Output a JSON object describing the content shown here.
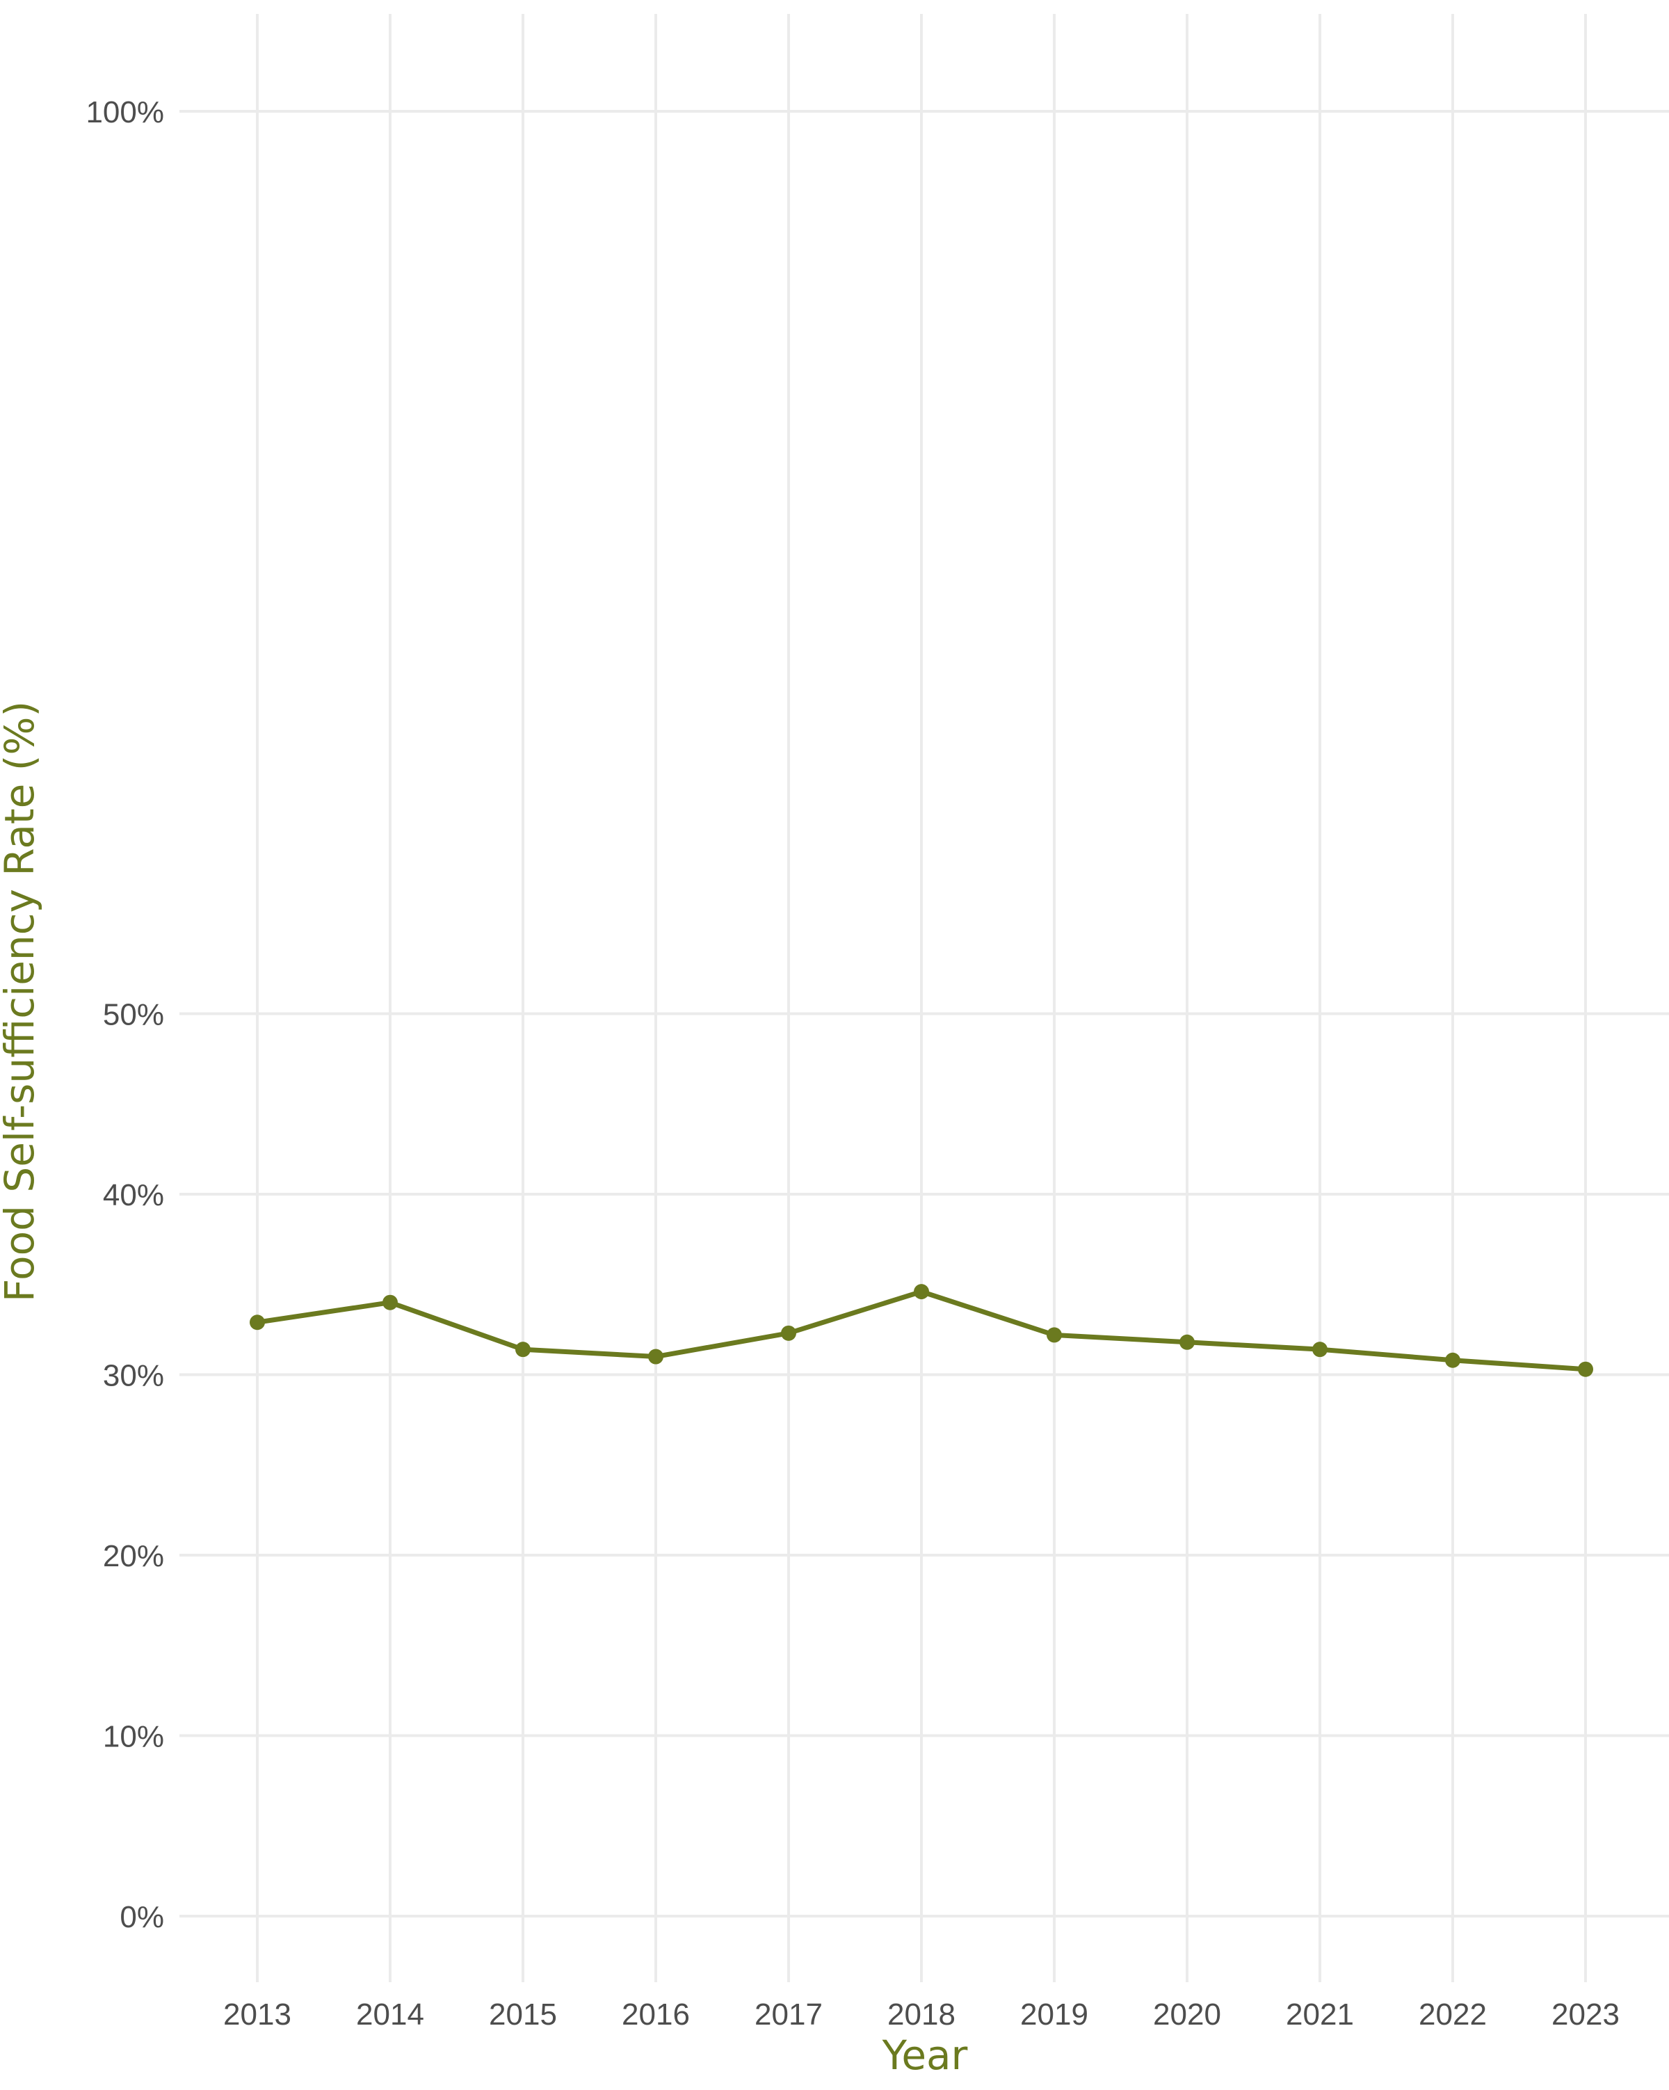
{
  "chart_data": {
    "type": "line",
    "title": "",
    "xlabel": "Year",
    "ylabel": "Food Self-sufficiency Rate (%)",
    "x": [
      2013,
      2014,
      2015,
      2016,
      2017,
      2018,
      2019,
      2020,
      2021,
      2022,
      2023
    ],
    "x_tick_labels": [
      "2013",
      "2014",
      "2015",
      "2016",
      "2017",
      "2018",
      "2019",
      "2020",
      "2021",
      "2022",
      "2023"
    ],
    "y_ticks": [
      0,
      10,
      20,
      30,
      40,
      50,
      100
    ],
    "y_tick_labels": [
      "0%",
      "10%",
      "20%",
      "30%",
      "40%",
      "50%",
      "100%"
    ],
    "ylim": [
      -5,
      105
    ],
    "xlim": [
      2012.4,
      2023.6
    ],
    "series": [
      {
        "values": [
          32.9,
          34.0,
          31.4,
          31.0,
          32.3,
          34.6,
          32.2,
          31.8,
          31.4,
          30.8,
          30.3
        ]
      }
    ],
    "grid": true,
    "legend": "none",
    "colors": {
      "line": "#6b7a1f",
      "axis_title": "#6b7a1f",
      "tick_text": "#4d4d4d",
      "grid": "#ebebeb",
      "background": "#ffffff"
    }
  }
}
